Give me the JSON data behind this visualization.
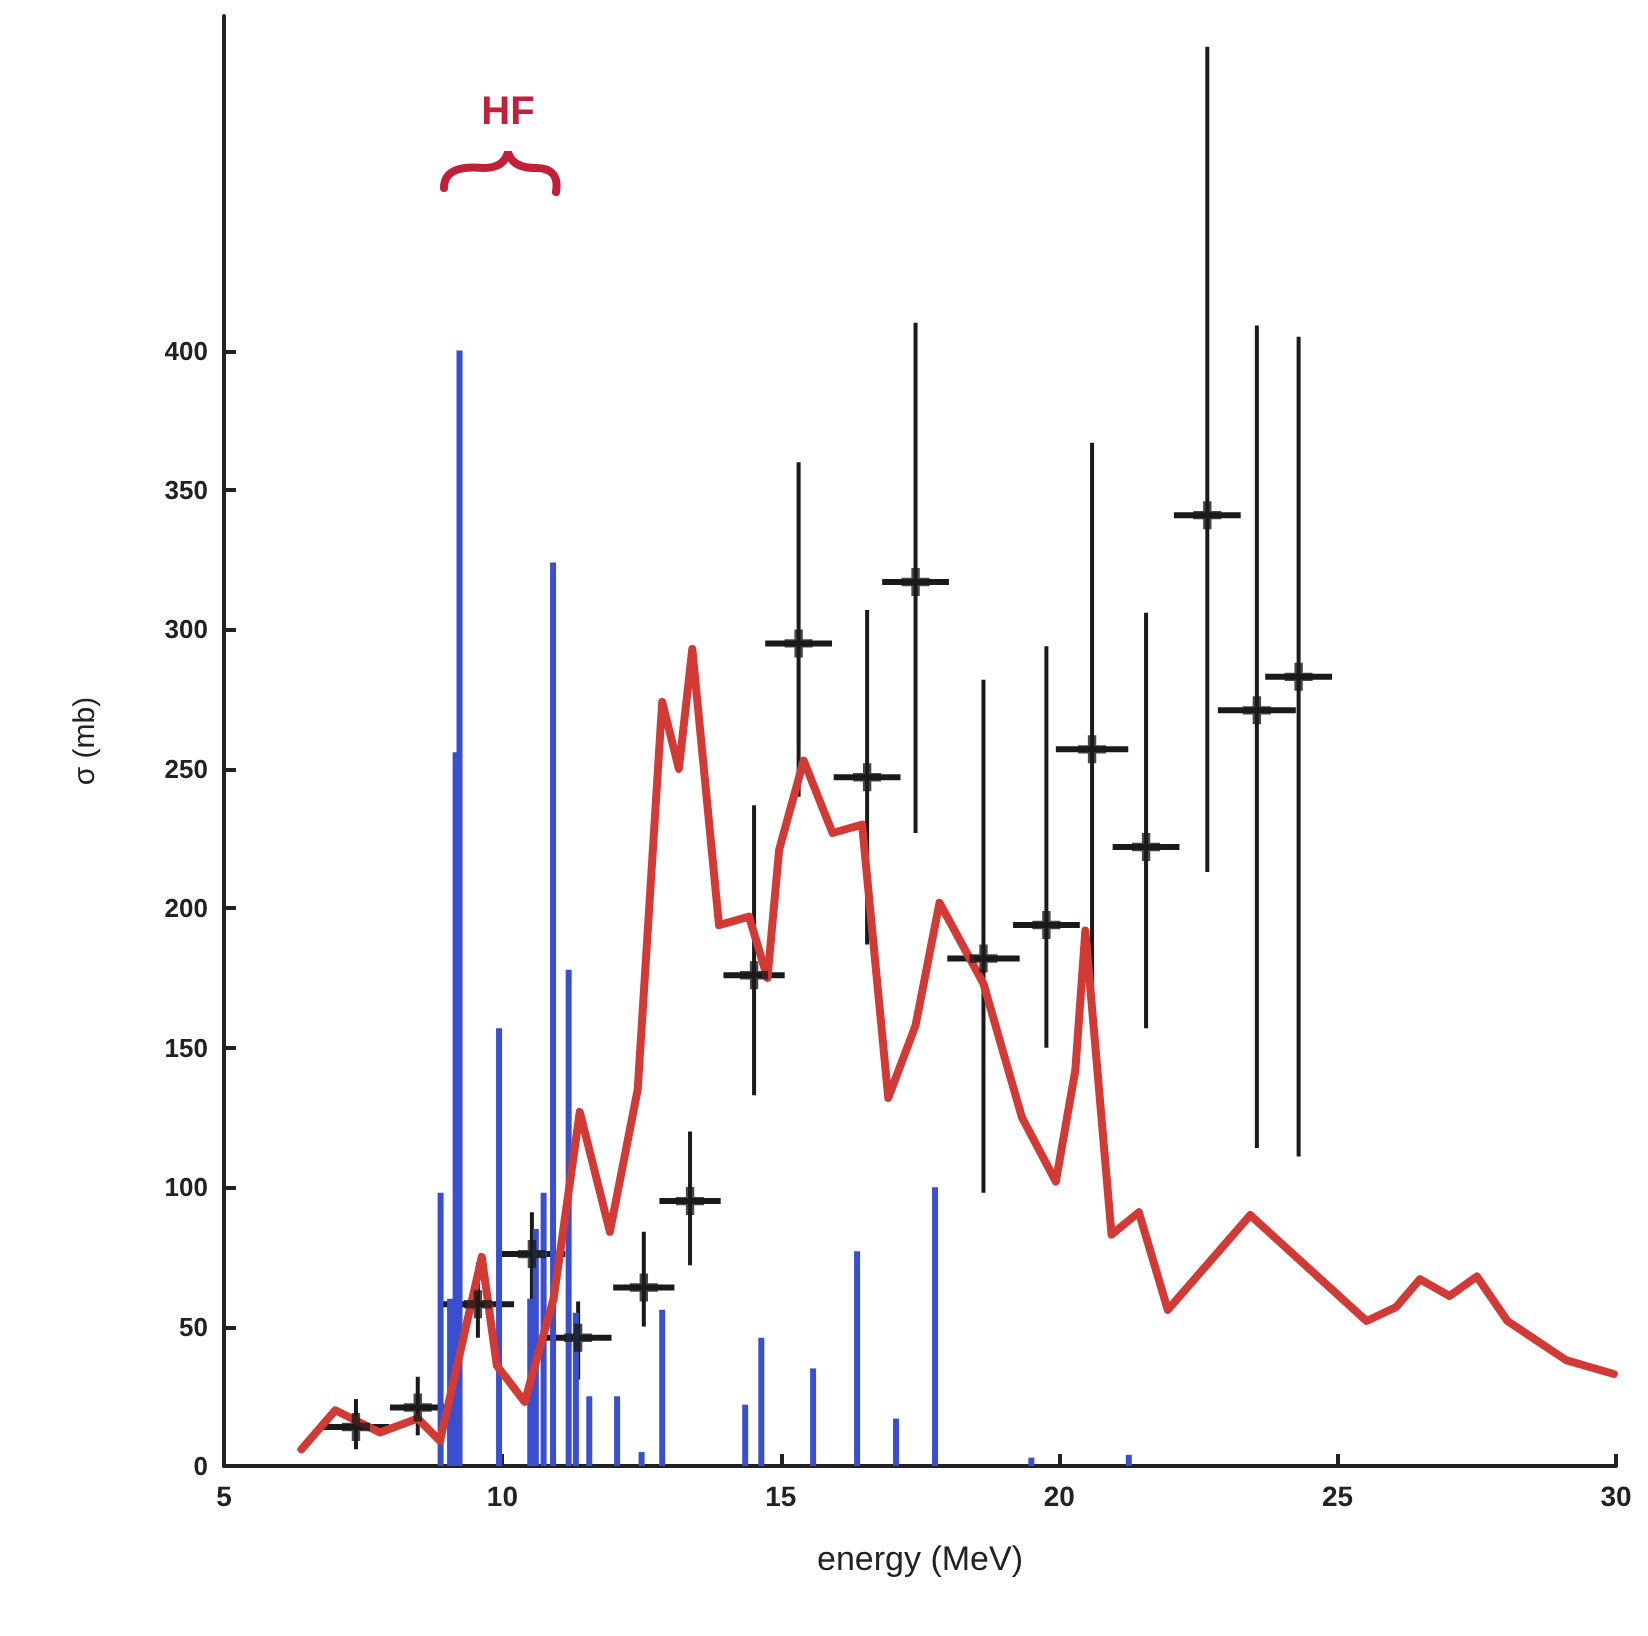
{
  "chart_data": {
    "type": "line",
    "xlabel": "energy (MeV)",
    "ylabel": "σ (mb)",
    "xlim": [
      5,
      30
    ],
    "xticks": [
      5,
      10,
      15,
      20,
      25,
      30
    ],
    "ylim": [
      0,
      520
    ],
    "yticks": [
      0,
      50,
      100,
      150,
      200,
      250,
      300,
      350,
      400
    ],
    "grid": false,
    "annotations": [
      "HF"
    ],
    "series": [
      {
        "type": "bar",
        "color": "#3a4fd0",
        "x": [
          8.89,
          9.06,
          9.16,
          9.23,
          9.94,
          10.5,
          10.6,
          10.74,
          10.91,
          11.19,
          11.32,
          11.56,
          12.06,
          12.5,
          12.87,
          14.36,
          14.65,
          15.58,
          16.37,
          17.07,
          17.77,
          19.5,
          21.25
        ],
        "values": [
          98,
          60,
          256,
          400,
          157,
          60,
          85,
          98,
          324,
          178,
          55,
          25,
          25,
          5,
          56,
          22,
          46,
          35,
          77,
          17,
          100,
          3,
          4
        ]
      },
      {
        "color": "#d23a35",
        "marker": "none",
        "line_style": "solid",
        "x": [
          6.39,
          7.0,
          7.8,
          8.48,
          8.88,
          9.63,
          9.9,
          10.4,
          10.92,
          11.39,
          11.93,
          12.43,
          12.87,
          13.17,
          13.41,
          13.89,
          14.43,
          14.76,
          14.97,
          15.41,
          15.93,
          16.46,
          16.93,
          17.42,
          17.85,
          18.64,
          19.33,
          19.94,
          20.29,
          20.47,
          20.94,
          21.43,
          21.95,
          23.43,
          25.52,
          26.05,
          26.48,
          27.01,
          27.5,
          28.05,
          29.1,
          29.96
        ],
        "values": [
          6,
          20,
          12,
          17,
          9,
          75,
          36,
          23,
          60,
          127,
          84,
          135,
          274,
          250,
          293,
          194,
          197,
          175,
          221,
          253,
          227,
          230,
          132,
          158,
          202,
          173,
          125,
          102,
          142,
          192,
          83,
          91,
          56,
          90,
          52,
          57,
          67,
          61,
          68,
          52,
          38,
          33
        ]
      },
      {
        "type": "scatter",
        "color": "#1a1a1a",
        "marker": "cross",
        "x": [
          7.37,
          8.48,
          9.56,
          10.53,
          11.36,
          12.54,
          13.37,
          14.52,
          15.32,
          16.55,
          17.42,
          18.64,
          19.77,
          20.59,
          21.56,
          22.66,
          23.55,
          24.3
        ],
        "values": [
          14,
          21,
          58,
          76,
          46,
          64,
          95,
          176,
          295,
          247,
          317,
          182,
          194,
          257,
          222,
          341,
          271,
          283
        ],
        "errors": [
          [
            6,
            24
          ],
          [
            11,
            32
          ],
          [
            46,
            73
          ],
          [
            59,
            91
          ],
          [
            31,
            59
          ],
          [
            50,
            84
          ],
          [
            72,
            120
          ],
          [
            133,
            237
          ],
          [
            240,
            360
          ],
          [
            187,
            307
          ],
          [
            227,
            410
          ],
          [
            98,
            282
          ],
          [
            150,
            294
          ],
          [
            163,
            367
          ],
          [
            157,
            306
          ],
          [
            213,
            509
          ],
          [
            114,
            409
          ],
          [
            111,
            405
          ]
        ],
        "xerrors": [
          0.6,
          0.5,
          0.65,
          0.6,
          0.6,
          0.55,
          0.55,
          0.55,
          0.6,
          0.6,
          0.6,
          0.65,
          0.6,
          0.65,
          0.6,
          0.6,
          0.7,
          0.6
        ]
      }
    ]
  }
}
